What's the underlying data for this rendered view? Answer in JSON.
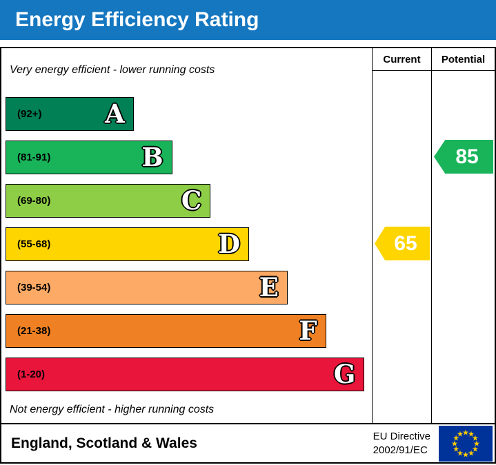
{
  "header": {
    "title": "Energy Efficiency Rating",
    "bg_color": "#1577c0"
  },
  "chart_data": {
    "type": "bar",
    "title": "Energy Efficiency Rating",
    "top_caption": "Very energy efficient - lower running costs",
    "bottom_caption": "Not energy efficient - higher running costs",
    "columns": [
      "Current",
      "Potential"
    ],
    "bands": [
      {
        "letter": "A",
        "range": "(92+)",
        "color": "#008054",
        "width_pct": 35
      },
      {
        "letter": "B",
        "range": "(81-91)",
        "color": "#19b459",
        "width_pct": 45.5
      },
      {
        "letter": "C",
        "range": "(69-80)",
        "color": "#8dce46",
        "width_pct": 56
      },
      {
        "letter": "D",
        "range": "(55-68)",
        "color": "#ffd500",
        "width_pct": 66.5
      },
      {
        "letter": "E",
        "range": "(39-54)",
        "color": "#fcaa65",
        "width_pct": 77
      },
      {
        "letter": "F",
        "range": "(21-38)",
        "color": "#ef8023",
        "width_pct": 87.5
      },
      {
        "letter": "G",
        "range": "(1-20)",
        "color": "#e9153b",
        "width_pct": 98
      }
    ],
    "current": {
      "label": "Current",
      "value": 65,
      "band": "D",
      "color": "#ffd500"
    },
    "potential": {
      "label": "Potential",
      "value": 85,
      "band": "B",
      "color": "#19b459"
    }
  },
  "footer": {
    "region": "England, Scotland & Wales",
    "directive_line1": "EU Directive",
    "directive_line2": "2002/91/EC",
    "flag_bg_color": "#003399",
    "flag_star_color": "#ffcc00"
  }
}
